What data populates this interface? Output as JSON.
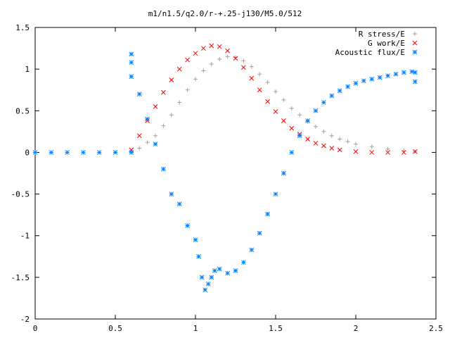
{
  "chart_data": {
    "type": "scatter",
    "title": "m1/n1.5/q2.0/r-+.25-j130/M5.0/512",
    "xlabel": "",
    "ylabel": "",
    "xlim": [
      0,
      2.5
    ],
    "ylim": [
      -2,
      1.5
    ],
    "x_ticks": [
      "0",
      "0.5",
      "1",
      "1.5",
      "2",
      "2.5"
    ],
    "x_tick_values": [
      0,
      0.5,
      1,
      1.5,
      2,
      2.5
    ],
    "y_ticks": [
      "1.5",
      "1",
      "0.5",
      "0",
      "-0.5",
      "-1",
      "-1.5",
      "-2"
    ],
    "y_tick_values": [
      1.5,
      1,
      0.5,
      0,
      -0.5,
      -1,
      -1.5,
      -2
    ],
    "grid": false,
    "legend_position": "top-right",
    "series": [
      {
        "name": "R stress/E",
        "marker": "plus",
        "color": "#a0a0a0",
        "points": [
          [
            0.6,
            0.0
          ],
          [
            0.65,
            0.05
          ],
          [
            0.7,
            0.12
          ],
          [
            0.75,
            0.2
          ],
          [
            0.8,
            0.32
          ],
          [
            0.85,
            0.45
          ],
          [
            0.9,
            0.6
          ],
          [
            0.95,
            0.75
          ],
          [
            1.0,
            0.88
          ],
          [
            1.05,
            0.98
          ],
          [
            1.1,
            1.06
          ],
          [
            1.15,
            1.12
          ],
          [
            1.2,
            1.15
          ],
          [
            1.25,
            1.14
          ],
          [
            1.3,
            1.1
          ],
          [
            1.35,
            1.03
          ],
          [
            1.4,
            0.94
          ],
          [
            1.45,
            0.84
          ],
          [
            1.5,
            0.73
          ],
          [
            1.55,
            0.63
          ],
          [
            1.6,
            0.53
          ],
          [
            1.65,
            0.45
          ],
          [
            1.7,
            0.37
          ],
          [
            1.75,
            0.31
          ],
          [
            1.8,
            0.25
          ],
          [
            1.85,
            0.2
          ],
          [
            1.9,
            0.16
          ],
          [
            1.95,
            0.13
          ],
          [
            2.0,
            0.1
          ],
          [
            2.1,
            0.07
          ],
          [
            2.2,
            0.04
          ],
          [
            2.3,
            0.02
          ],
          [
            2.37,
            0.01
          ]
        ]
      },
      {
        "name": "G work/E",
        "marker": "cross",
        "color": "#ff0000",
        "points": [
          [
            0.6,
            0.03
          ],
          [
            0.65,
            0.2
          ],
          [
            0.7,
            0.38
          ],
          [
            0.75,
            0.55
          ],
          [
            0.8,
            0.72
          ],
          [
            0.85,
            0.87
          ],
          [
            0.9,
            1.0
          ],
          [
            0.95,
            1.11
          ],
          [
            1.0,
            1.19
          ],
          [
            1.05,
            1.25
          ],
          [
            1.1,
            1.28
          ],
          [
            1.15,
            1.27
          ],
          [
            1.2,
            1.22
          ],
          [
            1.25,
            1.13
          ],
          [
            1.3,
            1.02
          ],
          [
            1.35,
            0.89
          ],
          [
            1.4,
            0.75
          ],
          [
            1.45,
            0.61
          ],
          [
            1.5,
            0.49
          ],
          [
            1.55,
            0.38
          ],
          [
            1.6,
            0.29
          ],
          [
            1.65,
            0.22
          ],
          [
            1.7,
            0.16
          ],
          [
            1.75,
            0.11
          ],
          [
            1.8,
            0.08
          ],
          [
            1.85,
            0.05
          ],
          [
            1.9,
            0.03
          ],
          [
            2.0,
            0.01
          ],
          [
            2.1,
            0.0
          ],
          [
            2.2,
            0.0
          ],
          [
            2.3,
            0.0
          ],
          [
            2.37,
            0.01
          ]
        ]
      },
      {
        "name": "Acoustic flux/E",
        "marker": "star",
        "color": "#0080ff",
        "points": [
          [
            0.0,
            0.0
          ],
          [
            0.1,
            0.0
          ],
          [
            0.2,
            0.0
          ],
          [
            0.3,
            0.0
          ],
          [
            0.4,
            0.0
          ],
          [
            0.5,
            0.0
          ],
          [
            0.6,
            0.0
          ],
          [
            0.6,
            1.18
          ],
          [
            0.6,
            1.08
          ],
          [
            0.6,
            0.91
          ],
          [
            0.65,
            0.7
          ],
          [
            0.7,
            0.4
          ],
          [
            0.75,
            0.1
          ],
          [
            0.8,
            -0.2
          ],
          [
            0.85,
            -0.5
          ],
          [
            0.9,
            -0.62
          ],
          [
            0.95,
            -0.88
          ],
          [
            1.0,
            -1.05
          ],
          [
            1.02,
            -1.25
          ],
          [
            1.04,
            -1.5
          ],
          [
            1.06,
            -1.65
          ],
          [
            1.08,
            -1.58
          ],
          [
            1.1,
            -1.5
          ],
          [
            1.12,
            -1.42
          ],
          [
            1.15,
            -1.4
          ],
          [
            1.2,
            -1.45
          ],
          [
            1.25,
            -1.42
          ],
          [
            1.3,
            -1.32
          ],
          [
            1.35,
            -1.17
          ],
          [
            1.4,
            -0.97
          ],
          [
            1.45,
            -0.74
          ],
          [
            1.5,
            -0.5
          ],
          [
            1.55,
            -0.25
          ],
          [
            1.6,
            0.0
          ],
          [
            1.65,
            0.2
          ],
          [
            1.7,
            0.38
          ],
          [
            1.75,
            0.5
          ],
          [
            1.8,
            0.6
          ],
          [
            1.85,
            0.68
          ],
          [
            1.9,
            0.74
          ],
          [
            1.95,
            0.79
          ],
          [
            2.0,
            0.83
          ],
          [
            2.05,
            0.86
          ],
          [
            2.1,
            0.88
          ],
          [
            2.15,
            0.9
          ],
          [
            2.2,
            0.92
          ],
          [
            2.25,
            0.94
          ],
          [
            2.3,
            0.96
          ],
          [
            2.35,
            0.97
          ],
          [
            2.37,
            0.96
          ],
          [
            2.37,
            0.85
          ]
        ]
      }
    ]
  }
}
